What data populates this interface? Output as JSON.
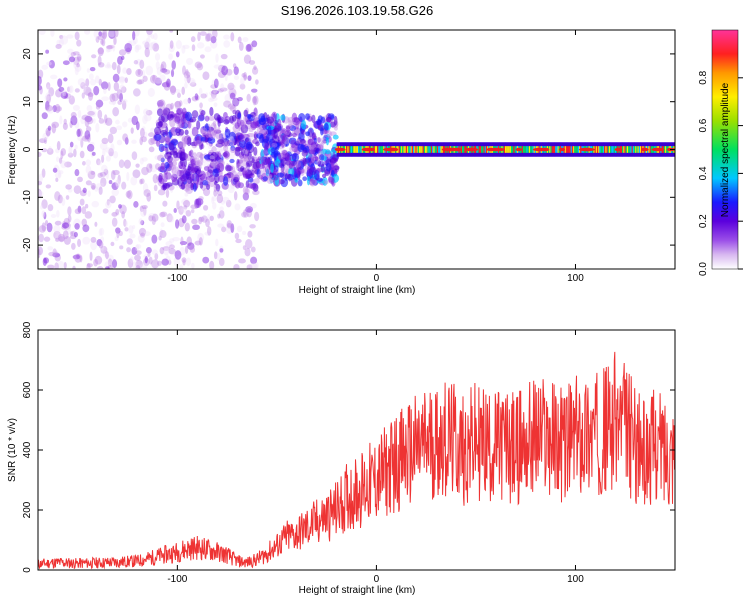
{
  "title": "S196.2026.103.19.58.G26",
  "chart_data": [
    {
      "type": "heatmap",
      "title": "S196.2026.103.19.58.G26",
      "xlabel": "Height of straight line (km)",
      "ylabel": "Frequency (Hz)",
      "xlim": [
        -170,
        150
      ],
      "ylim": [
        -25,
        25
      ],
      "xticks": [
        -100,
        0,
        100
      ],
      "yticks": [
        -20,
        -10,
        0,
        10,
        20
      ],
      "colorbar": {
        "label": "Normalized spectral amplitude",
        "range": [
          0,
          1
        ],
        "ticks": [
          0.0,
          0.2,
          0.4,
          0.6,
          0.8
        ]
      },
      "description_points": [
        {
          "x_range": [
            -170,
            -60
          ],
          "freq_spread": 25,
          "amplitude": 0.15
        },
        {
          "x_range": [
            -110,
            -60
          ],
          "freq_spread": 8,
          "amplitude": 0.3
        },
        {
          "x_range": [
            -60,
            -20
          ],
          "freq_spread": 7,
          "amplitude": 0.35
        },
        {
          "x_range": [
            -20,
            150
          ],
          "freq_spread": 1.5,
          "amplitude": 0.9
        }
      ]
    },
    {
      "type": "line",
      "xlabel": "Height of straight line (km)",
      "ylabel": "SNR (10 * v/v)",
      "xlim": [
        -170,
        150
      ],
      "ylim": [
        0,
        800
      ],
      "xticks": [
        -100,
        0,
        100
      ],
      "yticks": [
        0,
        200,
        400,
        600,
        800
      ],
      "color": "#ee3333",
      "x": [
        -170,
        -160,
        -150,
        -140,
        -130,
        -120,
        -110,
        -100,
        -95,
        -90,
        -85,
        -80,
        -75,
        -70,
        -65,
        -60,
        -55,
        -50,
        -45,
        -40,
        -35,
        -30,
        -25,
        -20,
        -15,
        -10,
        -5,
        0,
        5,
        10,
        15,
        20,
        25,
        30,
        35,
        40,
        45,
        50,
        55,
        60,
        65,
        70,
        75,
        80,
        85,
        90,
        95,
        100,
        105,
        110,
        115,
        120,
        125,
        130,
        135,
        140,
        145,
        150
      ],
      "values": [
        20,
        25,
        22,
        24,
        26,
        30,
        45,
        60,
        70,
        75,
        68,
        60,
        50,
        30,
        25,
        35,
        55,
        80,
        110,
        120,
        140,
        160,
        180,
        200,
        240,
        260,
        280,
        300,
        330,
        360,
        380,
        400,
        420,
        430,
        440,
        420,
        400,
        430,
        420,
        410,
        420,
        400,
        430,
        440,
        450,
        430,
        420,
        440,
        460,
        450,
        470,
        500,
        480,
        420,
        380,
        420,
        400,
        420
      ]
    }
  ]
}
